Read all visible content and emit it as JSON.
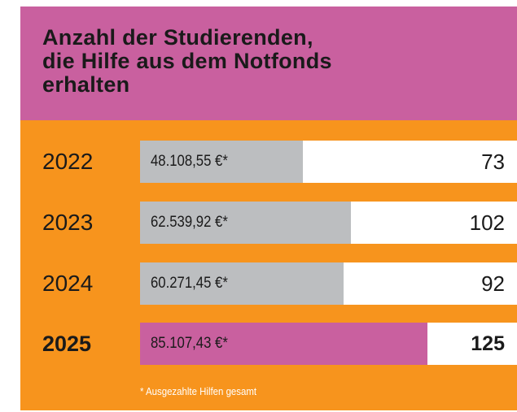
{
  "chart_data": {
    "type": "bar",
    "title": "Anzahl der Studierenden,\ndie Hilfe aus dem Notfonds\nerhalten",
    "categories": [
      "2022",
      "2023",
      "2024",
      "2025"
    ],
    "values": [
      48108.55,
      62539.92,
      60271.45,
      85107.43
    ],
    "value_labels": [
      "48.108,55 €*",
      "62.539,92 €*",
      "60.271,45 €*",
      "85.107,43 €*"
    ],
    "counts": [
      73,
      102,
      92,
      125
    ],
    "colors": [
      "#bcbec0",
      "#bcbec0",
      "#bcbec0",
      "#c9609f"
    ],
    "bold": [
      false,
      false,
      false,
      true
    ],
    "footnote": "* Ausgezahlte Hilfen gesamt"
  }
}
